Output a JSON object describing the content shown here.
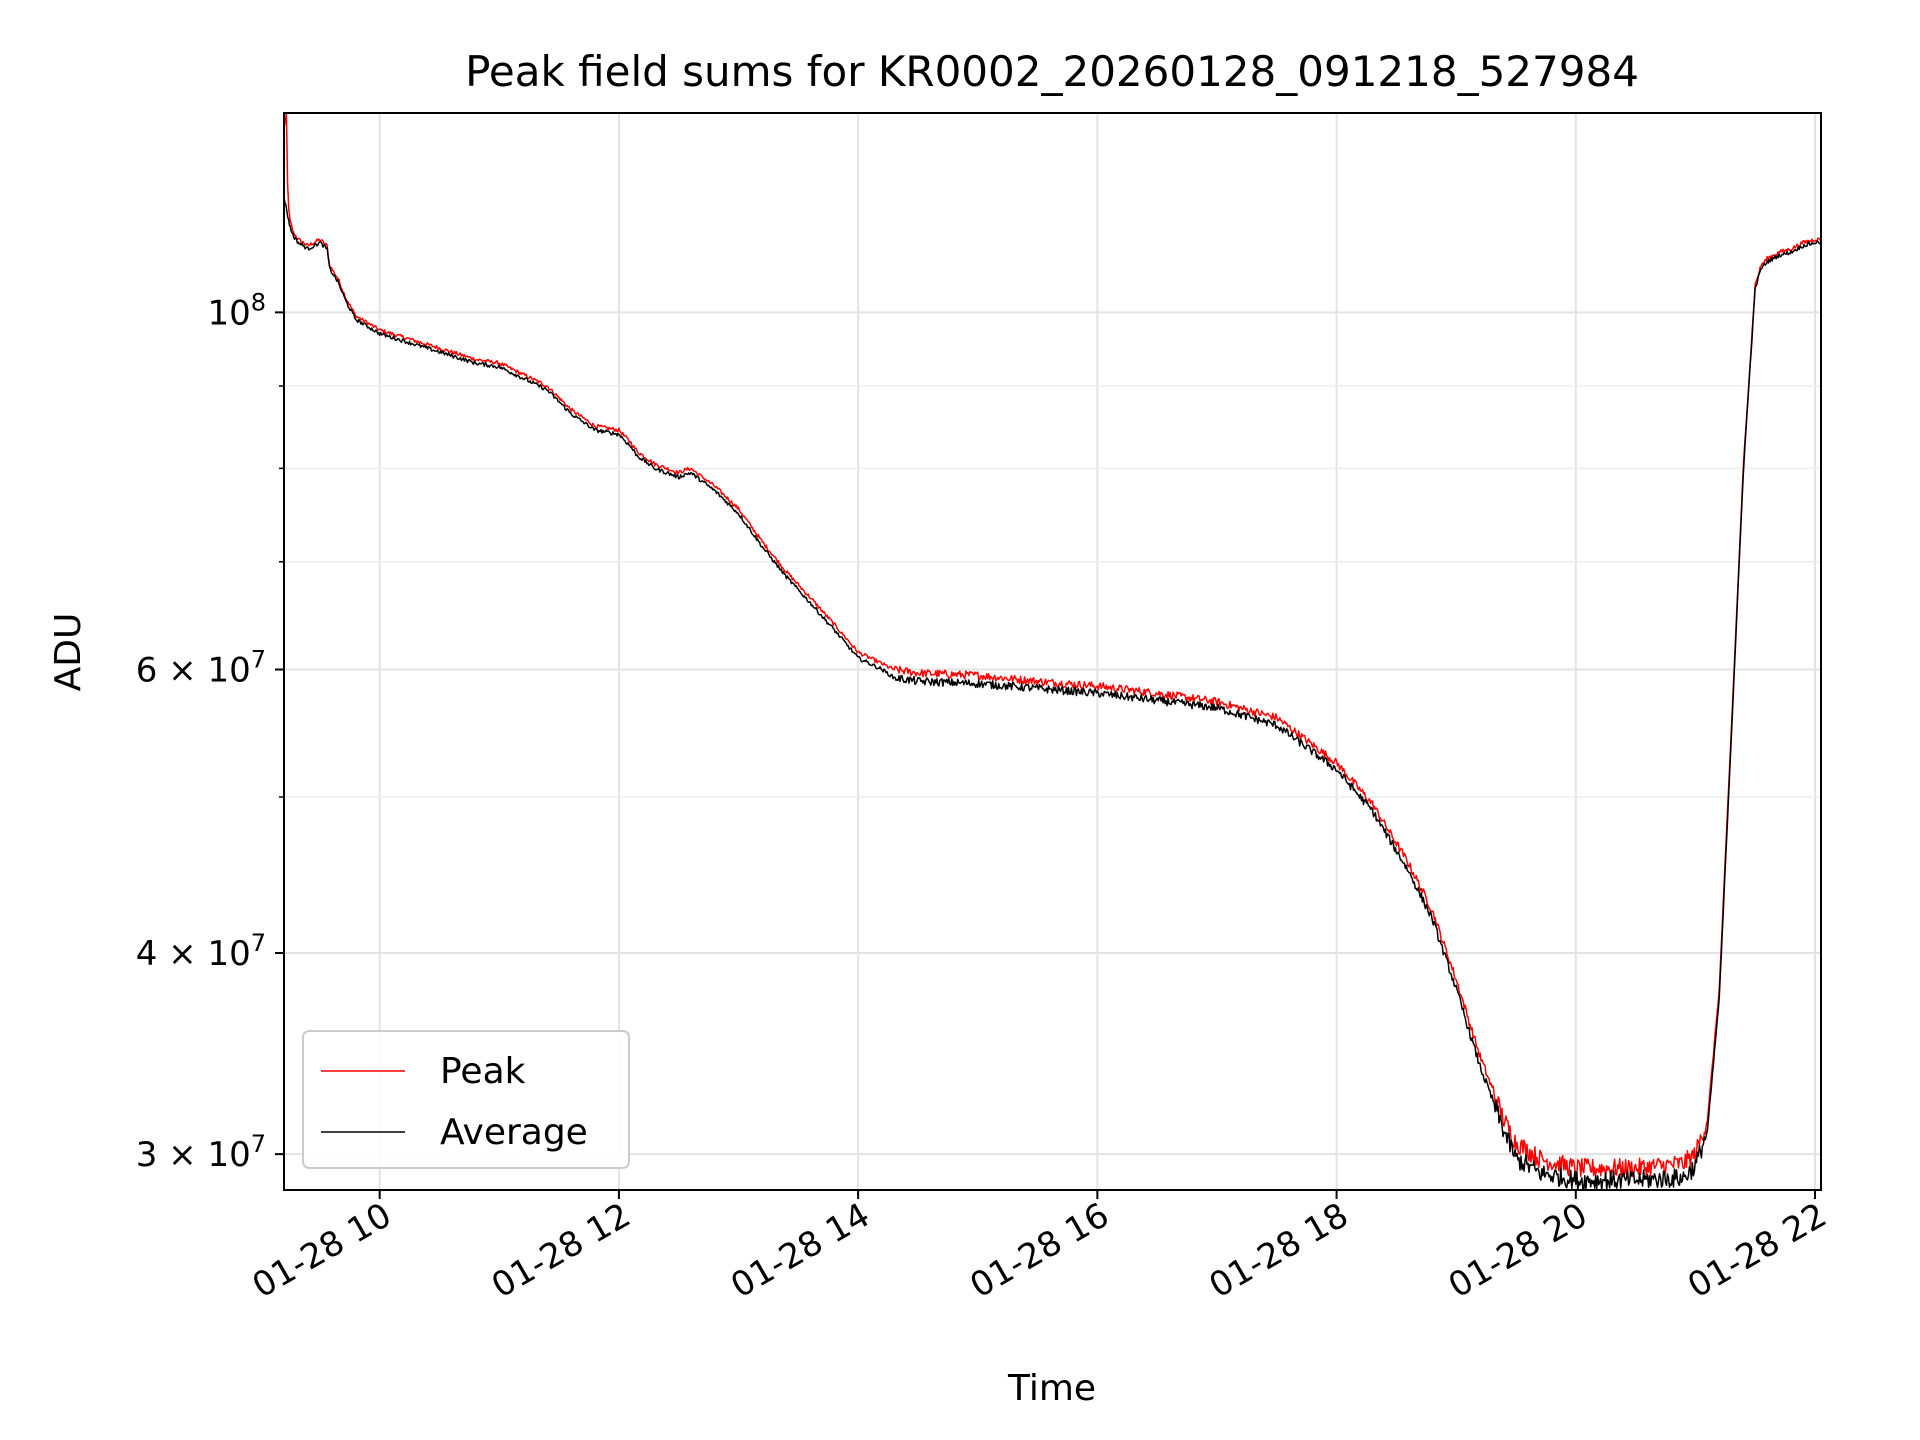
{
  "chart_data": {
    "type": "line",
    "title": "Peak field sums for KR0002_20260128_091218_527984",
    "xlabel": "Time",
    "ylabel": "ADU",
    "yscale": "log",
    "xlim": [
      9.2,
      22.05
    ],
    "ylim": [
      28500000,
      133000000
    ],
    "grid": true,
    "legend_position": "lower-left",
    "x_ticks": [
      {
        "value": 10,
        "label": "01-28 10"
      },
      {
        "value": 12,
        "label": "01-28 12"
      },
      {
        "value": 14,
        "label": "01-28 14"
      },
      {
        "value": 16,
        "label": "01-28 16"
      },
      {
        "value": 18,
        "label": "01-28 18"
      },
      {
        "value": 20,
        "label": "01-28 20"
      },
      {
        "value": 22,
        "label": "01-28 22"
      }
    ],
    "y_major_ticks": [
      {
        "value": 100000000,
        "mantissa": "10",
        "exponent": "8"
      },
      {
        "value": 60000000,
        "mantissa": "6 × 10",
        "exponent": "7"
      },
      {
        "value": 40000000,
        "mantissa": "4 × 10",
        "exponent": "7"
      },
      {
        "value": 30000000,
        "mantissa": "3 × 10",
        "exponent": "7"
      }
    ],
    "y_minor_ticks": [
      90000000,
      80000000,
      70000000,
      50000000
    ],
    "x_unit": "hour of 2026-01-28",
    "series": [
      {
        "name": "Peak",
        "color": "#ff0000",
        "x": [
          9.2,
          9.22,
          9.23,
          9.24,
          9.25,
          9.28,
          9.32,
          9.4,
          9.5,
          9.56,
          9.58,
          9.65,
          9.72,
          9.8,
          9.9,
          10.0,
          10.2,
          10.5,
          10.8,
          11.0,
          11.2,
          11.4,
          11.5,
          11.6,
          11.8,
          12.0,
          12.1,
          12.15,
          12.3,
          12.5,
          12.55,
          12.6,
          12.8,
          13.0,
          13.2,
          13.4,
          13.6,
          13.8,
          14.0,
          14.2,
          14.3,
          14.5,
          15.0,
          15.5,
          16.0,
          16.5,
          17.0,
          17.5,
          18.0,
          18.3,
          18.6,
          18.8,
          19.0,
          19.2,
          19.4,
          19.5,
          19.7,
          20.0,
          20.5,
          20.9,
          21.0,
          21.1,
          21.2,
          21.3,
          21.4,
          21.5,
          21.55,
          21.6,
          21.7,
          21.8,
          21.9,
          22.0,
          22.05
        ],
        "y": [
          130000000,
          133000000,
          120000000,
          116000000,
          114000000,
          112000000,
          111000000,
          110000000,
          111000000,
          110000000,
          107000000,
          105000000,
          102000000,
          99500000,
          98500000,
          97500000,
          96500000,
          95000000,
          93500000,
          93000000,
          91500000,
          90000000,
          88500000,
          87000000,
          85000000,
          84500000,
          83000000,
          82000000,
          80500000,
          79500000,
          79800000,
          80000000,
          78000000,
          75500000,
          72000000,
          69000000,
          66500000,
          64000000,
          61500000,
          60500000,
          60000000,
          59700000,
          59500000,
          59000000,
          58600000,
          58000000,
          57300000,
          56000000,
          52500000,
          49500000,
          45500000,
          42500000,
          38500000,
          34500000,
          31500000,
          30500000,
          29800000,
          29400000,
          29400000,
          29600000,
          30000000,
          31500000,
          38000000,
          55000000,
          80000000,
          104000000,
          107000000,
          108000000,
          109000000,
          109500000,
          110500000,
          111000000,
          111000000
        ]
      },
      {
        "name": "Average",
        "color": "#000000",
        "x": [
          9.2,
          9.24,
          9.25,
          9.28,
          9.32,
          9.4,
          9.5,
          9.56,
          9.58,
          9.65,
          9.72,
          9.8,
          9.9,
          10.0,
          10.2,
          10.5,
          10.8,
          11.0,
          11.2,
          11.4,
          11.5,
          11.6,
          11.8,
          12.0,
          12.1,
          12.15,
          12.3,
          12.5,
          12.55,
          12.6,
          12.8,
          13.0,
          13.2,
          13.4,
          13.6,
          13.8,
          14.0,
          14.2,
          14.3,
          14.5,
          15.0,
          15.5,
          16.0,
          16.5,
          17.0,
          17.5,
          18.0,
          18.3,
          18.6,
          18.8,
          19.0,
          19.2,
          19.4,
          19.5,
          19.7,
          20.0,
          20.5,
          20.9,
          21.0,
          21.1,
          21.2,
          21.3,
          21.4,
          21.5,
          21.55,
          21.6,
          21.7,
          21.8,
          21.9,
          22.0,
          22.05
        ],
        "y": [
          118000000,
          114000000,
          113000000,
          111500000,
          110500000,
          109500000,
          110500000,
          109500000,
          106500000,
          104500000,
          101500000,
          99000000,
          98000000,
          97000000,
          96000000,
          94500000,
          93000000,
          92500000,
          91000000,
          89500000,
          88000000,
          86500000,
          84500000,
          84000000,
          82500000,
          81500000,
          80000000,
          79000000,
          79300000,
          79500000,
          77500000,
          75000000,
          71500000,
          68500000,
          66000000,
          63500000,
          61000000,
          60000000,
          59300000,
          59000000,
          58800000,
          58400000,
          58000000,
          57400000,
          56800000,
          55400000,
          52000000,
          49000000,
          45000000,
          42000000,
          38000000,
          34000000,
          31000000,
          29800000,
          29200000,
          28900000,
          28900000,
          29000000,
          29500000,
          31000000,
          37500000,
          54500000,
          79500000,
          103500000,
          106500000,
          107500000,
          108500000,
          109000000,
          110000000,
          110500000,
          110500000
        ]
      }
    ]
  }
}
